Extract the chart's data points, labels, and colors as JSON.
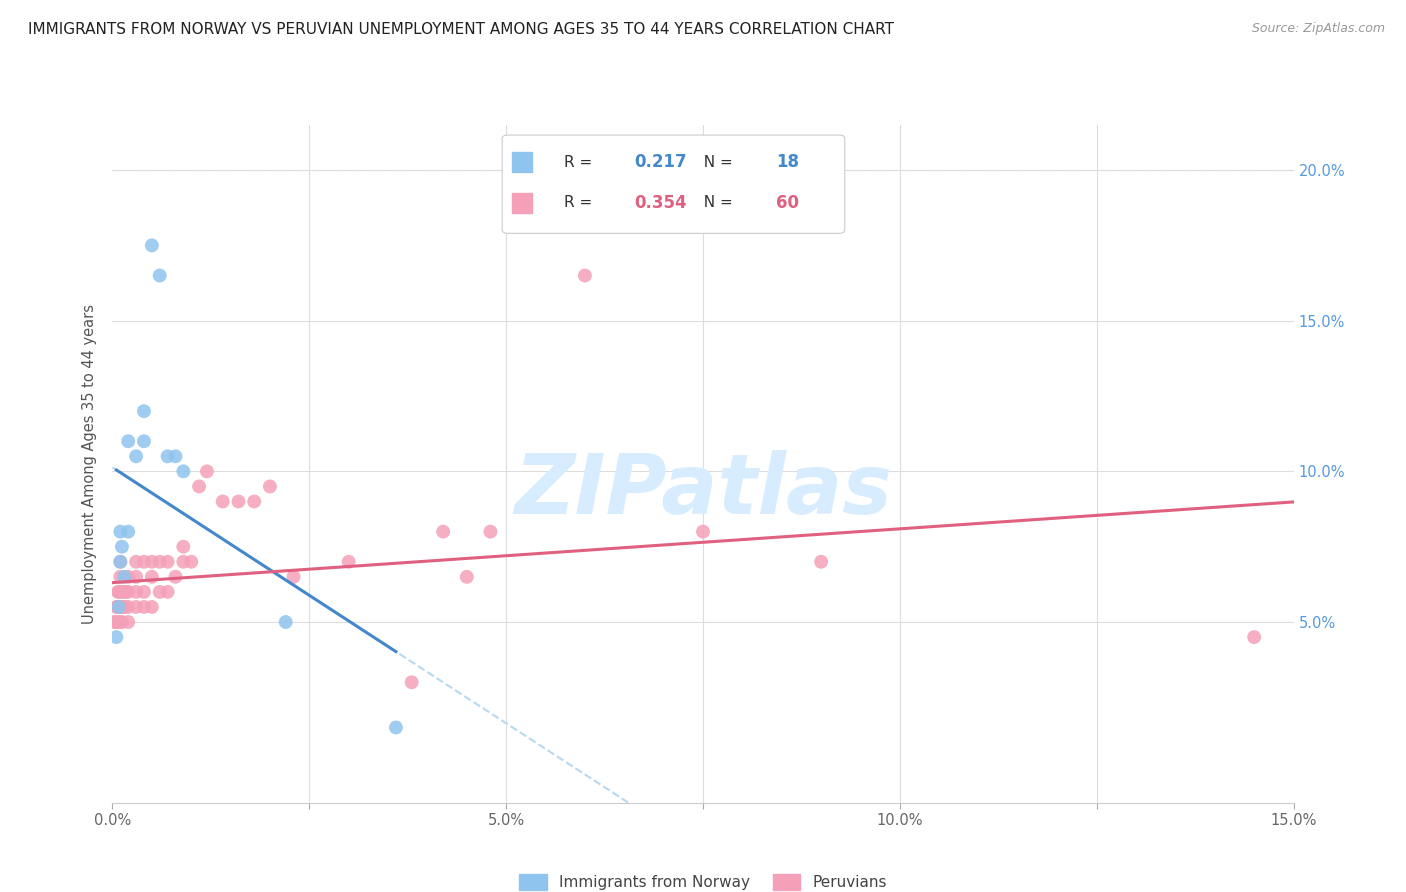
{
  "title": "IMMIGRANTS FROM NORWAY VS PERUVIAN UNEMPLOYMENT AMONG AGES 35 TO 44 YEARS CORRELATION CHART",
  "source": "Source: ZipAtlas.com",
  "ylabel": "Unemployment Among Ages 35 to 44 years",
  "xlim": [
    0.0,
    0.15
  ],
  "ylim": [
    -0.01,
    0.215
  ],
  "r1": "0.217",
  "n1": "18",
  "r2": "0.354",
  "n2": "60",
  "color_norway": "#8EC4EE",
  "color_peru": "#F4A0B8",
  "color_norway_line": "#4488CC",
  "color_peru_line": "#E06080",
  "color_norway_dash": "#B8D8F0",
  "legend_label1": "Immigrants from Norway",
  "legend_label2": "Peruvians",
  "background_color": "#FFFFFF",
  "grid_color": "#DDDDDD",
  "watermark": "ZIPatlas",
  "watermark_color": "#D8ECFF",
  "norway_x": [
    0.0005,
    0.0008,
    0.001,
    0.001,
    0.0012,
    0.0015,
    0.002,
    0.002,
    0.003,
    0.004,
    0.004,
    0.005,
    0.006,
    0.007,
    0.008,
    0.009,
    0.022,
    0.036
  ],
  "norway_y": [
    0.045,
    0.055,
    0.07,
    0.08,
    0.075,
    0.065,
    0.08,
    0.11,
    0.105,
    0.11,
    0.12,
    0.175,
    0.165,
    0.105,
    0.105,
    0.1,
    0.05,
    0.015
  ],
  "peru_x": [
    0.0003,
    0.0004,
    0.0005,
    0.0005,
    0.0006,
    0.0006,
    0.0007,
    0.0007,
    0.0007,
    0.0008,
    0.0008,
    0.0009,
    0.001,
    0.001,
    0.001,
    0.001,
    0.001,
    0.0012,
    0.0013,
    0.0014,
    0.0015,
    0.0016,
    0.002,
    0.002,
    0.002,
    0.002,
    0.003,
    0.003,
    0.003,
    0.003,
    0.004,
    0.004,
    0.004,
    0.005,
    0.005,
    0.005,
    0.006,
    0.006,
    0.007,
    0.007,
    0.008,
    0.009,
    0.009,
    0.01,
    0.011,
    0.012,
    0.014,
    0.016,
    0.018,
    0.02,
    0.023,
    0.03,
    0.038,
    0.042,
    0.045,
    0.048,
    0.06,
    0.075,
    0.09,
    0.145
  ],
  "peru_y": [
    0.05,
    0.05,
    0.05,
    0.055,
    0.05,
    0.055,
    0.05,
    0.055,
    0.06,
    0.055,
    0.06,
    0.055,
    0.05,
    0.055,
    0.06,
    0.065,
    0.07,
    0.05,
    0.055,
    0.06,
    0.055,
    0.06,
    0.05,
    0.055,
    0.06,
    0.065,
    0.055,
    0.06,
    0.065,
    0.07,
    0.055,
    0.06,
    0.07,
    0.055,
    0.065,
    0.07,
    0.06,
    0.07,
    0.06,
    0.07,
    0.065,
    0.07,
    0.075,
    0.07,
    0.095,
    0.1,
    0.09,
    0.09,
    0.09,
    0.095,
    0.065,
    0.07,
    0.03,
    0.08,
    0.065,
    0.08,
    0.165,
    0.08,
    0.07,
    0.045
  ]
}
